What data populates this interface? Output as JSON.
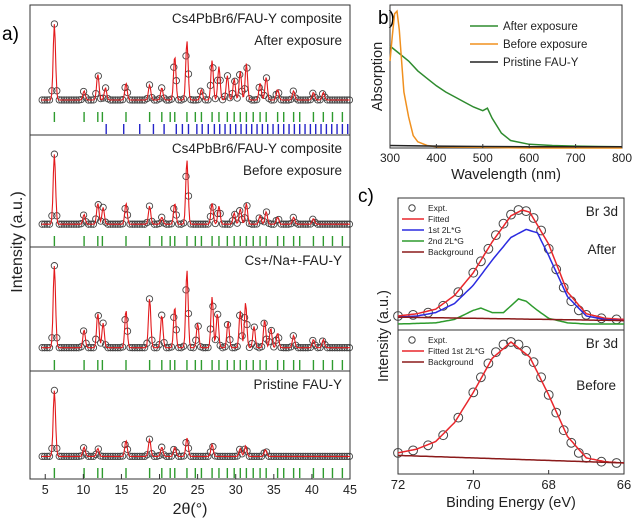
{
  "figure": {
    "panel_labels": [
      "a)",
      "b)",
      "c)"
    ]
  },
  "chart_data": [
    {
      "type": "scatter",
      "panel": "a)",
      "xlabel": "2θ(°)",
      "ylabel": "Intensity (a.u.)",
      "xlim": [
        3,
        45
      ],
      "x_ticks": [
        5,
        10,
        15,
        20,
        25,
        30,
        35,
        40,
        45
      ],
      "series_style": {
        "observed": "open black circles",
        "fit": "red line",
        "reference_marks_1": "#2e9b2e",
        "reference_marks_2": "#2a2ad0"
      },
      "subpanels": [
        {
          "label_lines": [
            "Cs4PbBr6/FAU-Y composite",
            "After exposure"
          ],
          "peaks": [
            [
              6.2,
              1.0
            ],
            [
              10.1,
              0.12
            ],
            [
              11.9,
              0.34
            ],
            [
              12.9,
              0.16
            ],
            [
              15.6,
              0.22
            ],
            [
              18.7,
              0.2
            ],
            [
              20.3,
              0.16
            ],
            [
              22.0,
              0.58
            ],
            [
              23.6,
              0.78
            ],
            [
              25.5,
              0.14
            ],
            [
              26.9,
              0.52
            ],
            [
              27.8,
              0.44
            ],
            [
              28.9,
              0.32
            ],
            [
              29.8,
              0.28
            ],
            [
              30.6,
              0.38
            ],
            [
              31.4,
              0.48
            ],
            [
              33.2,
              0.22
            ],
            [
              34.0,
              0.3
            ],
            [
              35.5,
              0.14
            ],
            [
              37.6,
              0.12
            ],
            [
              40.2,
              0.1
            ],
            [
              41.5,
              0.1
            ]
          ],
          "reference_marks": [
            {
              "color": "green",
              "positions": [
                6.2,
                10.1,
                11.9,
                12.5,
                15.6,
                18.7,
                20.3,
                21.4,
                22.0,
                23.6,
                24.7,
                25.5,
                26.9,
                27.8,
                28.9,
                29.8,
                30.6,
                31.4,
                32.3,
                33.2,
                34.0,
                35.5,
                36.3,
                37.6,
                38.4,
                40.2,
                41.5,
                42.7,
                44.0
              ]
            },
            {
              "color": "blue",
              "positions": [
                13.0,
                15.3,
                17.4,
                19.2,
                20.6,
                22.2,
                23.0,
                23.8,
                24.9,
                25.6,
                26.4,
                27.2,
                27.9,
                28.6,
                29.3,
                30.0,
                30.7,
                31.4,
                32.1,
                32.8,
                33.5,
                34.2,
                34.9,
                35.6,
                36.3,
                37.0,
                37.7,
                38.4,
                39.1,
                39.8,
                40.5,
                41.2,
                41.9,
                42.6,
                43.3,
                44.0,
                44.7
              ]
            }
          ]
        },
        {
          "label_lines": [
            "Cs4PbBr6/FAU-Y composite",
            "Before exposure"
          ],
          "peaks": [
            [
              6.2,
              1.0
            ],
            [
              10.1,
              0.14
            ],
            [
              11.9,
              0.3
            ],
            [
              12.6,
              0.24
            ],
            [
              15.6,
              0.3
            ],
            [
              18.7,
              0.26
            ],
            [
              20.3,
              0.1
            ],
            [
              22.0,
              0.3
            ],
            [
              23.6,
              0.92
            ],
            [
              26.9,
              0.3
            ],
            [
              27.8,
              0.26
            ],
            [
              29.8,
              0.16
            ],
            [
              30.6,
              0.22
            ],
            [
              31.4,
              0.3
            ],
            [
              33.2,
              0.12
            ],
            [
              34.0,
              0.18
            ],
            [
              35.5,
              0.1
            ],
            [
              37.6,
              0.1
            ],
            [
              40.2,
              0.08
            ]
          ],
          "reference_marks": [
            {
              "color": "green",
              "positions": [
                6.2,
                10.1,
                11.9,
                12.5,
                15.6,
                18.7,
                20.3,
                21.4,
                22.0,
                23.6,
                24.7,
                25.5,
                26.9,
                27.8,
                28.9,
                29.8,
                30.6,
                31.4,
                32.3,
                33.2,
                34.0,
                35.5,
                36.3,
                37.6,
                38.4,
                40.2,
                41.5,
                42.7,
                44.0
              ]
            }
          ]
        },
        {
          "label_lines": [
            "Cs+/Na+-FAU-Y"
          ],
          "peaks": [
            [
              6.2,
              1.0
            ],
            [
              10.1,
              0.22
            ],
            [
              11.9,
              0.42
            ],
            [
              12.6,
              0.3
            ],
            [
              15.6,
              0.46
            ],
            [
              18.7,
              0.6
            ],
            [
              20.3,
              0.4
            ],
            [
              22.0,
              0.5
            ],
            [
              23.6,
              0.95
            ],
            [
              25.0,
              0.3
            ],
            [
              26.9,
              0.62
            ],
            [
              27.6,
              0.42
            ],
            [
              29.0,
              0.32
            ],
            [
              30.6,
              0.45
            ],
            [
              31.3,
              0.55
            ],
            [
              32.4,
              0.26
            ],
            [
              33.8,
              0.34
            ],
            [
              34.6,
              0.24
            ],
            [
              35.5,
              0.18
            ],
            [
              37.6,
              0.15
            ],
            [
              40.2,
              0.1
            ],
            [
              41.5,
              0.1
            ]
          ],
          "reference_marks": [
            {
              "color": "green",
              "positions": [
                6.2,
                10.1,
                11.9,
                12.5,
                15.6,
                18.7,
                20.3,
                21.4,
                22.0,
                23.6,
                24.7,
                25.5,
                26.9,
                27.8,
                28.9,
                29.8,
                30.6,
                31.4,
                32.3,
                33.2,
                34.0,
                35.5,
                36.3,
                37.6,
                38.4,
                40.2,
                41.5,
                42.7,
                44.0
              ]
            }
          ]
        },
        {
          "label_lines": [
            "Pristine FAU-Y"
          ],
          "peaks": [
            [
              6.2,
              1.0
            ],
            [
              10.1,
              0.14
            ],
            [
              11.9,
              0.12
            ],
            [
              15.6,
              0.24
            ],
            [
              18.7,
              0.26
            ],
            [
              20.3,
              0.14
            ],
            [
              22.0,
              0.14
            ],
            [
              23.6,
              0.28
            ],
            [
              26.9,
              0.18
            ],
            [
              30.6,
              0.12
            ],
            [
              31.3,
              0.16
            ],
            [
              33.9,
              0.1
            ]
          ],
          "reference_marks": [
            {
              "color": "green",
              "positions": [
                6.2,
                10.1,
                11.9,
                12.5,
                15.6,
                18.7,
                20.3,
                21.4,
                22.0,
                23.6,
                24.7,
                25.5,
                26.9,
                27.8,
                28.9,
                29.8,
                30.6,
                31.4,
                32.3,
                33.2,
                34.0,
                35.5,
                36.3,
                37.6,
                38.4,
                40.2,
                41.5,
                42.7,
                44.0
              ]
            }
          ]
        }
      ]
    },
    {
      "type": "line",
      "panel": "b)",
      "xlabel": "Wavelength (nm)",
      "ylabel": "Absorption",
      "xlim": [
        300,
        800
      ],
      "x_ticks": [
        300,
        400,
        500,
        600,
        700,
        800
      ],
      "ylim": [
        0,
        1.15
      ],
      "legend_position": "top-right",
      "series": [
        {
          "name": "After exposure",
          "color": "#2e8b2e",
          "x": [
            300,
            320,
            340,
            360,
            380,
            400,
            420,
            440,
            460,
            480,
            500,
            510,
            520,
            540,
            560,
            600,
            650,
            700,
            750,
            800
          ],
          "y": [
            0.82,
            0.76,
            0.7,
            0.62,
            0.56,
            0.5,
            0.45,
            0.41,
            0.37,
            0.33,
            0.3,
            0.32,
            0.24,
            0.12,
            0.06,
            0.03,
            0.02,
            0.015,
            0.012,
            0.01
          ]
        },
        {
          "name": "Before exposure",
          "color": "#f0901e",
          "x": [
            300,
            305,
            310,
            315,
            320,
            325,
            330,
            340,
            350,
            360,
            380,
            400,
            500,
            600,
            800
          ],
          "y": [
            0.7,
            0.9,
            1.08,
            1.1,
            0.95,
            0.7,
            0.45,
            0.25,
            0.1,
            0.05,
            0.02,
            0.01,
            0.005,
            0.0,
            0.0
          ]
        },
        {
          "name": "Pristine FAU-Y",
          "color": "#222222",
          "x": [
            300,
            400,
            500,
            600,
            700,
            800
          ],
          "y": [
            0.02,
            0.015,
            0.012,
            0.01,
            0.01,
            0.01
          ]
        }
      ]
    },
    {
      "type": "line",
      "panel": "c)",
      "xlabel": "Binding Energy (eV)",
      "ylabel": "Intensity (a.u.)",
      "xlim": [
        72,
        66
      ],
      "x_ticks": [
        72,
        70,
        68,
        66
      ],
      "subpanels": [
        {
          "title": "Br 3d",
          "label": "After",
          "legend": [
            "Expt.",
            "Fitted",
            "1st 2L*G",
            "2nd 2L*G",
            "Background"
          ],
          "series": [
            {
              "name": "Expt.",
              "color": "#333333",
              "style": "open circles",
              "x": [
                72.0,
                71.6,
                71.2,
                70.8,
                70.4,
                70.0,
                69.8,
                69.6,
                69.4,
                69.2,
                69.0,
                68.8,
                68.6,
                68.4,
                68.2,
                68.0,
                67.8,
                67.6,
                67.4,
                67.2,
                67.0,
                66.6,
                66.2
              ],
              "y": [
                0.07,
                0.08,
                0.1,
                0.16,
                0.28,
                0.45,
                0.55,
                0.66,
                0.78,
                0.88,
                0.96,
                1.0,
                0.99,
                0.93,
                0.82,
                0.66,
                0.48,
                0.32,
                0.2,
                0.12,
                0.08,
                0.05,
                0.04
              ]
            },
            {
              "name": "Fitted",
              "color": "#e8262b",
              "x": [
                72.0,
                71.5,
                71.0,
                70.5,
                70.0,
                69.5,
                69.0,
                68.7,
                68.5,
                68.0,
                67.5,
                67.0,
                66.5,
                66.0
              ],
              "y": [
                0.07,
                0.09,
                0.13,
                0.25,
                0.45,
                0.72,
                0.95,
                1.0,
                0.98,
                0.7,
                0.28,
                0.09,
                0.05,
                0.04
              ]
            },
            {
              "name": "1st 2L*G",
              "color": "#2b2be0",
              "x": [
                72.0,
                71.5,
                71.0,
                70.5,
                70.0,
                69.5,
                69.0,
                68.6,
                68.3,
                68.0,
                67.5,
                67.0,
                66.5,
                66.0
              ],
              "y": [
                0.06,
                0.07,
                0.1,
                0.18,
                0.34,
                0.56,
                0.76,
                0.83,
                0.8,
                0.6,
                0.24,
                0.07,
                0.04,
                0.03
              ]
            },
            {
              "name": "2nd 2L*G",
              "color": "#2e9b2e",
              "x": [
                72.0,
                71.0,
                70.5,
                70.0,
                69.8,
                69.5,
                69.2,
                69.0,
                68.8,
                68.6,
                68.3,
                68.0,
                67.5,
                67.0,
                66.0
              ],
              "y": [
                0.0,
                0.01,
                0.04,
                0.12,
                0.14,
                0.1,
                0.1,
                0.16,
                0.22,
                0.2,
                0.12,
                0.05,
                0.01,
                0.0,
                0.0
              ]
            },
            {
              "name": "Background",
              "color": "#8b1a1a",
              "x": [
                72.0,
                70.0,
                68.0,
                66.0
              ],
              "y": [
                0.06,
                0.05,
                0.04,
                0.03
              ]
            }
          ]
        },
        {
          "title": "Br 3d",
          "label": "Before",
          "legend": [
            "Expt.",
            "Fitted 1st 2L*G",
            "Background"
          ],
          "series": [
            {
              "name": "Expt.",
              "color": "#333333",
              "style": "open circles",
              "x": [
                72.0,
                71.6,
                71.2,
                70.8,
                70.4,
                70.0,
                69.8,
                69.6,
                69.4,
                69.2,
                69.0,
                68.8,
                68.6,
                68.4,
                68.2,
                68.0,
                67.8,
                67.6,
                67.4,
                67.2,
                67.0,
                66.6,
                66.2
              ],
              "y": [
                0.12,
                0.14,
                0.18,
                0.26,
                0.4,
                0.6,
                0.72,
                0.83,
                0.92,
                0.98,
                1.0,
                0.98,
                0.93,
                0.84,
                0.72,
                0.58,
                0.44,
                0.3,
                0.2,
                0.12,
                0.08,
                0.05,
                0.04
              ]
            },
            {
              "name": "Fitted 1st 2L*G",
              "color": "#e8262b",
              "x": [
                72.0,
                71.5,
                71.0,
                70.5,
                70.0,
                69.5,
                69.0,
                68.5,
                68.0,
                67.5,
                67.0,
                66.5,
                66.0
              ],
              "y": [
                0.12,
                0.15,
                0.21,
                0.36,
                0.6,
                0.87,
                1.0,
                0.88,
                0.58,
                0.25,
                0.08,
                0.05,
                0.04
              ]
            },
            {
              "name": "Background",
              "color": "#8b1a1a",
              "x": [
                72.0,
                70.0,
                68.0,
                66.0
              ],
              "y": [
                0.1,
                0.08,
                0.06,
                0.04
              ]
            }
          ]
        }
      ]
    }
  ]
}
